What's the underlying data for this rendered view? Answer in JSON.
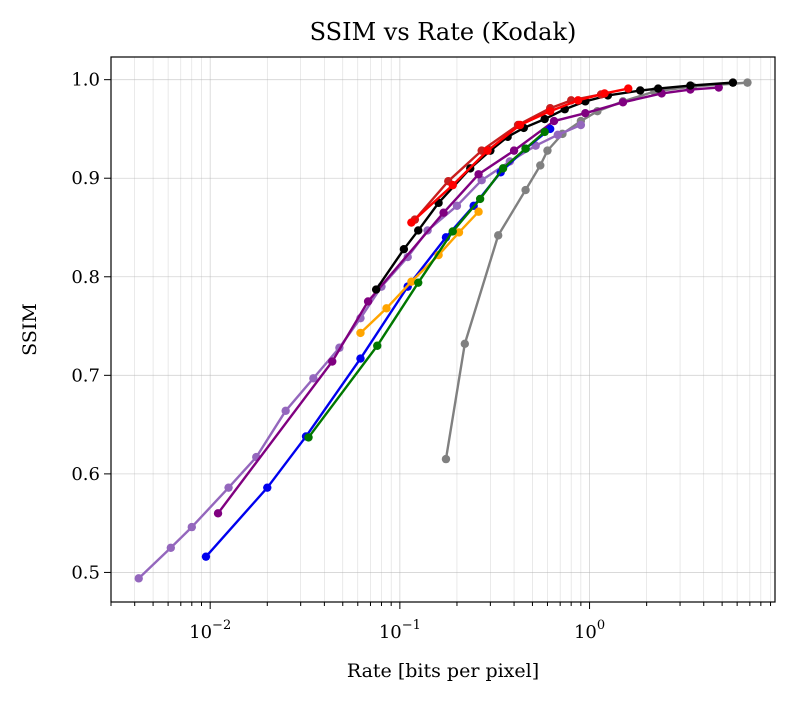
{
  "chart_data": {
    "type": "line",
    "title": "SSIM vs Rate (Kodak)",
    "xlabel": "Rate [bits per pixel]",
    "ylabel": "SSIM",
    "x_scale": "log",
    "xlim": [
      0.003,
      9.5
    ],
    "ylim": [
      0.47,
      1.023
    ],
    "x_major_ticks": [
      0.01,
      0.1,
      1
    ],
    "x_tick_labels": [
      "10",
      "10",
      "10"
    ],
    "x_tick_exponents": [
      "−2",
      "−1",
      "0"
    ],
    "y_ticks": [
      0.5,
      0.6,
      0.7,
      0.8,
      0.9,
      1.0
    ],
    "y_tick_labels": [
      "0.5",
      "0.6",
      "0.7",
      "0.8",
      "0.9",
      "1.0"
    ],
    "grid": true,
    "legend": "none",
    "series": [
      {
        "color": "#808080",
        "x": [
          0.175,
          0.22,
          0.33,
          0.46,
          0.55,
          0.6,
          0.72,
          0.9,
          1.1,
          1.5,
          2.2,
          3.5,
          6.8
        ],
        "y": [
          0.615,
          0.732,
          0.842,
          0.888,
          0.913,
          0.928,
          0.945,
          0.958,
          0.968,
          0.978,
          0.988,
          0.993,
          0.997
        ]
      },
      {
        "color": "#9467bd",
        "x": [
          0.0042,
          0.0062,
          0.008,
          0.0125,
          0.0175,
          0.025,
          0.035,
          0.048,
          0.062,
          0.08,
          0.11,
          0.14,
          0.2,
          0.27,
          0.38,
          0.52,
          0.68,
          0.9
        ],
        "y": [
          0.494,
          0.525,
          0.546,
          0.586,
          0.617,
          0.664,
          0.697,
          0.728,
          0.758,
          0.79,
          0.82,
          0.847,
          0.872,
          0.898,
          0.917,
          0.933,
          0.944,
          0.954
        ]
      },
      {
        "color": "#800080",
        "x": [
          0.011,
          0.044,
          0.068,
          0.17,
          0.26,
          0.4,
          0.65,
          0.95,
          1.5,
          2.4,
          3.4,
          4.8
        ],
        "y": [
          0.56,
          0.714,
          0.775,
          0.865,
          0.904,
          0.928,
          0.958,
          0.966,
          0.977,
          0.986,
          0.99,
          0.992
        ]
      },
      {
        "color": "#0000ee",
        "x": [
          0.0095,
          0.02,
          0.032,
          0.062,
          0.11,
          0.175,
          0.245,
          0.34,
          0.46,
          0.62
        ],
        "y": [
          0.516,
          0.586,
          0.638,
          0.717,
          0.79,
          0.84,
          0.872,
          0.906,
          0.93,
          0.95
        ]
      },
      {
        "color": "#ffa500",
        "x": [
          0.062,
          0.085,
          0.115,
          0.16,
          0.205,
          0.26
        ],
        "y": [
          0.743,
          0.768,
          0.795,
          0.822,
          0.845,
          0.866
        ]
      },
      {
        "color": "#007700",
        "x": [
          0.033,
          0.076,
          0.125,
          0.19,
          0.265,
          0.35,
          0.46,
          0.58
        ],
        "y": [
          0.637,
          0.73,
          0.794,
          0.846,
          0.879,
          0.91,
          0.93,
          0.947
        ]
      },
      {
        "color": "#000000",
        "x": [
          0.075,
          0.105,
          0.125,
          0.16,
          0.235,
          0.3,
          0.37,
          0.45,
          0.58,
          0.74,
          0.95,
          1.25,
          1.85,
          2.3,
          3.4,
          5.7
        ],
        "y": [
          0.787,
          0.828,
          0.847,
          0.875,
          0.91,
          0.928,
          0.942,
          0.951,
          0.96,
          0.97,
          0.978,
          0.984,
          0.989,
          0.991,
          0.994,
          0.997
        ]
      },
      {
        "color": "#c81e1e",
        "x": [
          0.12,
          0.18,
          0.27,
          0.42,
          0.62,
          0.8,
          1.15
        ],
        "y": [
          0.858,
          0.897,
          0.928,
          0.954,
          0.971,
          0.979,
          0.985
        ]
      },
      {
        "color": "#ff0000",
        "x": [
          0.115,
          0.19,
          0.29,
          0.43,
          0.62,
          0.87,
          1.2,
          1.6
        ],
        "y": [
          0.855,
          0.893,
          0.928,
          0.954,
          0.968,
          0.979,
          0.986,
          0.991
        ]
      }
    ]
  }
}
